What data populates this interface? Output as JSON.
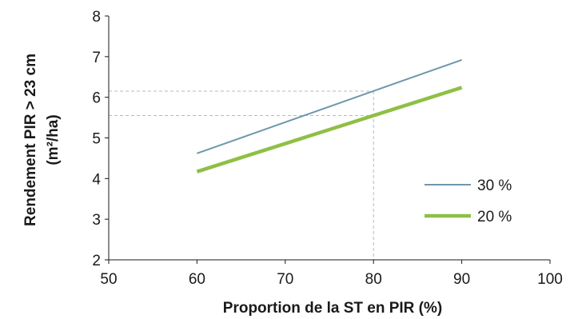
{
  "chart_data": {
    "type": "line",
    "xlabel": "Proportion de la ST en PIR (%)",
    "ylabel_line1": "Rendement PIR > 23 cm",
    "ylabel_line2": "(m²/ha)",
    "xlim": [
      50,
      100
    ],
    "ylim": [
      2,
      8
    ],
    "x_ticks": [
      "50",
      "60",
      "70",
      "80",
      "90",
      "100"
    ],
    "y_ticks": [
      "2",
      "3",
      "4",
      "5",
      "6",
      "7",
      "8"
    ],
    "grid": false,
    "legend_position": "right",
    "series": [
      {
        "name": "30 %",
        "color": "#6f97ab",
        "x": [
          60,
          90
        ],
        "y": [
          4.62,
          6.92
        ]
      },
      {
        "name": "20 %",
        "color": "#8fbf45",
        "x": [
          60,
          90
        ],
        "y": [
          4.17,
          6.24
        ]
      }
    ],
    "reference_lines": {
      "x": 80,
      "y_values": [
        6.15,
        5.55
      ],
      "color": "#b9b9b9"
    }
  }
}
